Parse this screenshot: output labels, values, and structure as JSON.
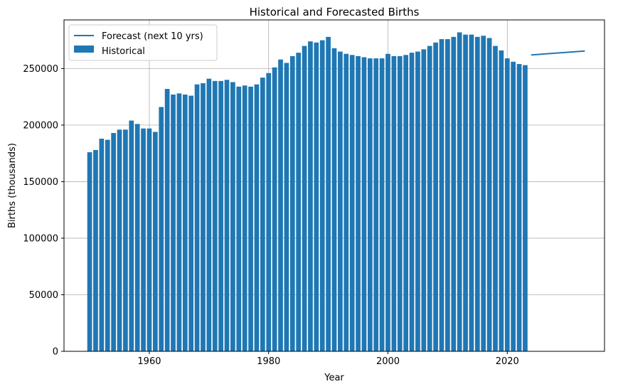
{
  "chart_data": {
    "type": "bar",
    "title": "Historical and Forecasted Births",
    "xlabel": "Year",
    "ylabel": "Births (thousands)",
    "xlim": [
      1945.7,
      2036.3
    ],
    "ylim": [
      0,
      293000
    ],
    "x_ticks": [
      1960,
      1980,
      2000,
      2020
    ],
    "y_ticks": [
      0,
      50000,
      100000,
      150000,
      200000,
      250000
    ],
    "grid": true,
    "legend_position": "top-left",
    "colors": {
      "bar": "#1f77b4",
      "line": "#1f77b4"
    },
    "series": [
      {
        "name": "Historical",
        "type": "bar",
        "x": [
          1950,
          1951,
          1952,
          1953,
          1954,
          1955,
          1956,
          1957,
          1958,
          1959,
          1960,
          1961,
          1962,
          1963,
          1964,
          1965,
          1966,
          1967,
          1968,
          1969,
          1970,
          1971,
          1972,
          1973,
          1974,
          1975,
          1976,
          1977,
          1978,
          1979,
          1980,
          1981,
          1982,
          1983,
          1984,
          1985,
          1986,
          1987,
          1988,
          1989,
          1990,
          1991,
          1992,
          1993,
          1994,
          1995,
          1996,
          1997,
          1998,
          1999,
          2000,
          2001,
          2002,
          2003,
          2004,
          2005,
          2006,
          2007,
          2008,
          2009,
          2010,
          2011,
          2012,
          2013,
          2014,
          2015,
          2016,
          2017,
          2018,
          2019,
          2020,
          2021,
          2022,
          2023
        ],
        "values": [
          176000,
          178000,
          188000,
          187000,
          193000,
          196000,
          196000,
          204000,
          201000,
          197000,
          197000,
          194000,
          216000,
          232000,
          227000,
          228000,
          227000,
          226000,
          236000,
          237000,
          241000,
          239000,
          239000,
          240000,
          238000,
          234000,
          235000,
          234000,
          236000,
          242000,
          246000,
          251000,
          258000,
          255000,
          261000,
          264000,
          270000,
          274000,
          273000,
          275000,
          278000,
          268000,
          265000,
          263000,
          262000,
          261000,
          260000,
          259000,
          259000,
          259000,
          263000,
          261000,
          261000,
          262000,
          264000,
          265000,
          267000,
          270000,
          273000,
          276000,
          276000,
          278000,
          282000,
          280000,
          280000,
          278000,
          279000,
          277000,
          270000,
          266000,
          259000,
          256000,
          254000,
          253000
        ]
      },
      {
        "name": "Forecast (next 10 yrs)",
        "type": "line",
        "x": [
          2024,
          2033
        ],
        "values": [
          262000,
          265500
        ]
      }
    ]
  }
}
